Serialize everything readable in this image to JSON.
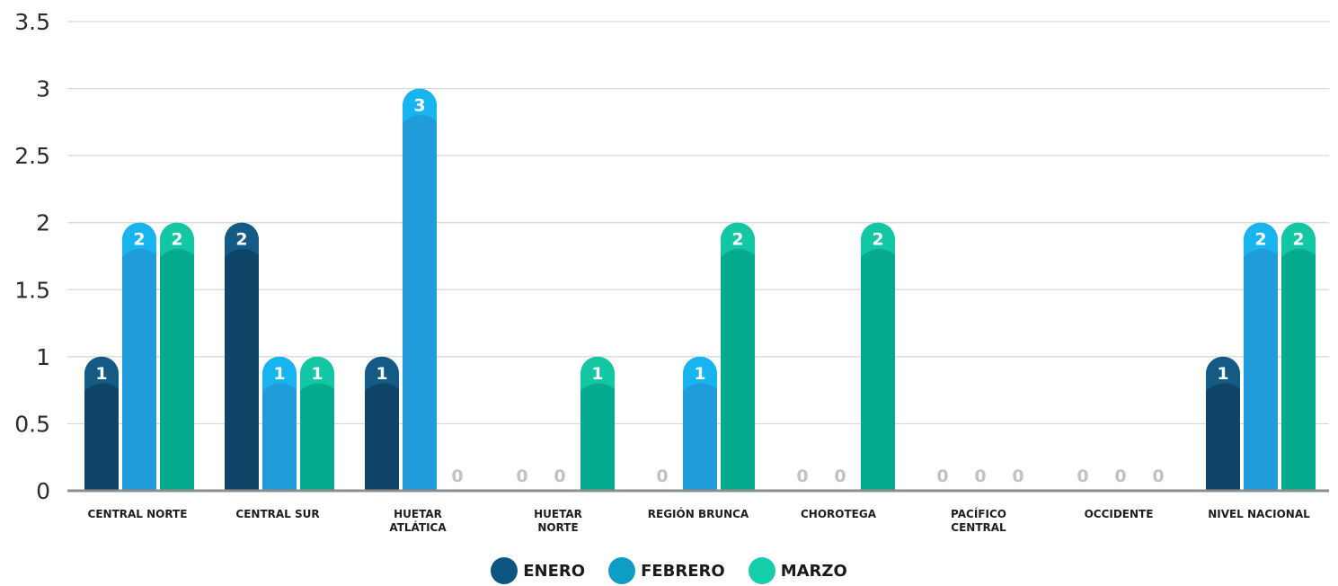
{
  "chart_data": {
    "type": "bar",
    "categories": [
      [
        "CENTRAL NORTE"
      ],
      [
        "CENTRAL SUR"
      ],
      [
        "HUETAR",
        "ATLÁTICA"
      ],
      [
        "HUETAR",
        "NORTE"
      ],
      [
        "REGIÓN BRUNCA"
      ],
      [
        "CHOROTEGA"
      ],
      [
        "PACÍFICO",
        "CENTRAL"
      ],
      [
        "OCCIDENTE"
      ],
      [
        "NIVEL NACIONAL"
      ]
    ],
    "series": [
      {
        "name": "ENERO",
        "values": [
          1,
          2,
          1,
          0,
          0,
          0,
          0,
          0,
          1
        ]
      },
      {
        "name": "FEBRERO",
        "values": [
          2,
          1,
          3,
          0,
          1,
          0,
          0,
          0,
          2
        ]
      },
      {
        "name": "MARZO",
        "values": [
          2,
          1,
          0,
          1,
          2,
          2,
          0,
          0,
          2
        ]
      }
    ],
    "y_ticks": [
      "0",
      "0.5",
      "1",
      "1.5",
      "2",
      "2.5",
      "3",
      "3.5"
    ],
    "ylim": [
      0,
      3.5
    ],
    "grid": true,
    "legend_position": "bottom",
    "colors": {
      "ENERO": "#0f4467",
      "FEBRERO": "#1f9cd9",
      "MARZO": "#06ab8f",
      "ENERO_label": "#135a84",
      "FEBRERO_label": "#17b4f0",
      "MARZO_label": "#13c6a4",
      "legend_ENERO": "#0f5581",
      "legend_FEBRERO": "#0e9dc4",
      "legend_MARZO": "#14ceac",
      "grid": "#d6d6d6",
      "axis": "#8c8c8c",
      "zero_label": "#c2c2c2"
    },
    "title": "",
    "xlabel": "",
    "ylabel": ""
  }
}
